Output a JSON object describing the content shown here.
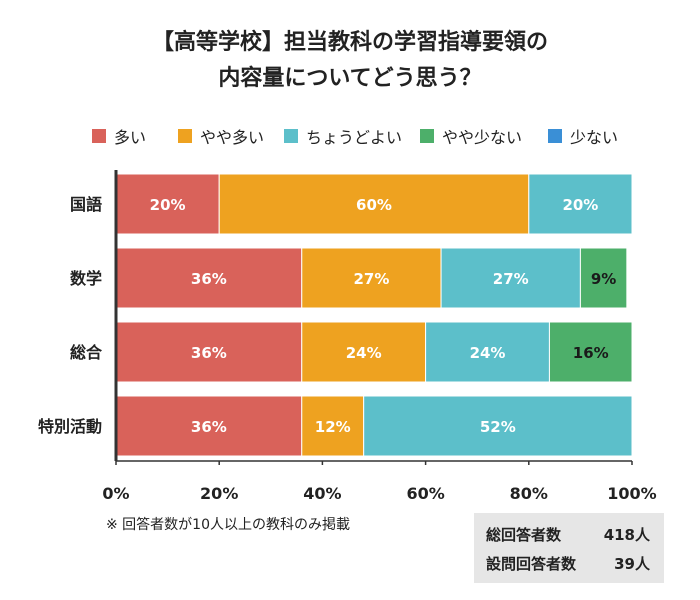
{
  "title": {
    "line1": "【高等学校】担当教科の学習指導要領の",
    "line2": "内容量についてどう思う？"
  },
  "legend": [
    {
      "label": "多い",
      "color": "#d9625a"
    },
    {
      "label": "やや多い",
      "color": "#eea220"
    },
    {
      "label": "ちょうどよい",
      "color": "#5cbfca"
    },
    {
      "label": "やや少ない",
      "color": "#4daf6a"
    },
    {
      "label": "少ない",
      "color": "#3a8fd6"
    }
  ],
  "chart_data": {
    "type": "bar",
    "orientation": "horizontal",
    "stacked": true,
    "categories": [
      "国語",
      "数学",
      "総合",
      "特別活動"
    ],
    "series": [
      {
        "name": "多い",
        "color": "#d9625a",
        "values": [
          20,
          36,
          36,
          36
        ]
      },
      {
        "name": "やや多い",
        "color": "#eea220",
        "values": [
          60,
          27,
          24,
          12
        ]
      },
      {
        "name": "ちょうどよい",
        "color": "#5cbfca",
        "values": [
          20,
          27,
          24,
          52
        ]
      },
      {
        "name": "やや少ない",
        "color": "#4daf6a",
        "values": [
          0,
          9,
          16,
          0
        ]
      },
      {
        "name": "少ない",
        "color": "#3a8fd6",
        "values": [
          0,
          0,
          0,
          0
        ]
      }
    ],
    "xlim": [
      0,
      100
    ],
    "xticks": [
      0,
      20,
      40,
      60,
      80,
      100
    ],
    "tick_labels": [
      "0%",
      "20%",
      "40%",
      "60%",
      "80%",
      "100%"
    ],
    "value_suffix": "%",
    "legend_position": "top"
  },
  "note": "※ 回答者数が10人以上の教科のみ掲載",
  "stats": [
    {
      "label": "総回答者数",
      "value": "418人"
    },
    {
      "label": "設問回答者数",
      "value": "39人"
    }
  ]
}
